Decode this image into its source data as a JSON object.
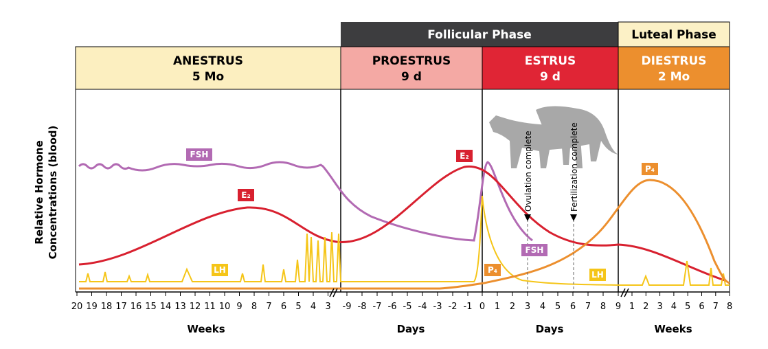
{
  "header": {
    "phases": [
      "Follicular Phase",
      "Luteal Phase"
    ],
    "stages": [
      {
        "name": "ANESTRUS",
        "duration": "5 Mo"
      },
      {
        "name": "PROESTRUS",
        "duration": "9 d"
      },
      {
        "name": "ESTRUS",
        "duration": "9 d"
      },
      {
        "name": "DIESTRUS",
        "duration": "2 Mo"
      }
    ]
  },
  "axis": {
    "y_label": [
      "Relative Hormone",
      "Concentrations (blood)"
    ],
    "weeks_left": [
      "20",
      "19",
      "18",
      "17",
      "16",
      "15",
      "14",
      "13",
      "12",
      "11",
      "10",
      "9",
      "8",
      "7",
      "6",
      "5",
      "4",
      "3"
    ],
    "days_left": [
      "-9",
      "-8",
      "-7",
      "-6",
      "-5",
      "-4",
      "-3",
      "-2",
      "-1"
    ],
    "days_right": [
      "0",
      "1",
      "2",
      "3",
      "4",
      "5",
      "6",
      "7",
      "8",
      "9"
    ],
    "weeks_right": [
      "1",
      "2",
      "3",
      "4",
      "5",
      "6",
      "7",
      "8"
    ],
    "x_labels": [
      "Weeks",
      "Days",
      "Days",
      "Weeks"
    ]
  },
  "hormone_labels": [
    "FSH",
    "E₂",
    "LH",
    "E₂",
    "FSH",
    "P₄",
    "LH",
    "P₄"
  ],
  "annotations": [
    "Ovulation complete",
    "Fertilization complete"
  ]
}
